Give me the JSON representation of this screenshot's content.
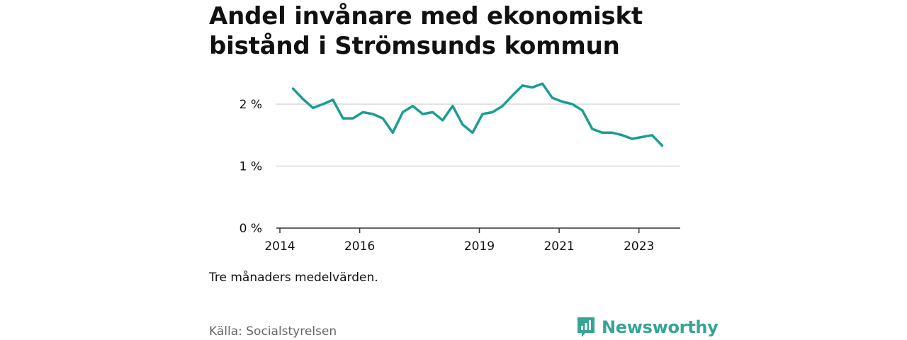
{
  "title": "Andel invånare med ekonomiskt bistånd i Strömsunds kommun",
  "note": "Tre månaders medelvärden.",
  "source": "Källa: Socialstyrelsen",
  "brand": {
    "name": "Newsworthy",
    "color": "#36a595"
  },
  "chart_data": {
    "type": "line",
    "title": "Andel invånare med ekonomiskt bistånd i Strömsunds kommun",
    "xlabel": "",
    "ylabel": "",
    "x_ticks": [
      2014,
      2016,
      2019,
      2021,
      2023
    ],
    "y_ticks": [
      {
        "value": 0,
        "label": "0 %"
      },
      {
        "value": 1,
        "label": "1 %"
      },
      {
        "value": 2,
        "label": "2 %"
      }
    ],
    "xlim": [
      2014,
      2024
    ],
    "ylim": [
      0,
      2.4
    ],
    "grid": true,
    "series": [
      {
        "color": "#1a9e92",
        "x": [
          2014.33,
          2014.58,
          2014.83,
          2015.08,
          2015.33,
          2015.58,
          2015.83,
          2016.08,
          2016.33,
          2016.58,
          2016.83,
          2017.08,
          2017.33,
          2017.58,
          2017.83,
          2018.08,
          2018.33,
          2018.58,
          2018.83,
          2019.08,
          2019.33,
          2019.58,
          2019.83,
          2020.08,
          2020.33,
          2020.58,
          2020.83,
          2021.08,
          2021.33,
          2021.58,
          2021.83,
          2022.08,
          2022.33,
          2022.58,
          2022.83,
          2023.08,
          2023.33,
          2023.58
        ],
        "values": [
          2.25,
          2.08,
          1.94,
          2.0,
          2.07,
          1.77,
          1.77,
          1.87,
          1.84,
          1.77,
          1.54,
          1.87,
          1.97,
          1.84,
          1.87,
          1.74,
          1.97,
          1.67,
          1.54,
          1.84,
          1.87,
          1.97,
          2.14,
          2.3,
          2.27,
          2.33,
          2.1,
          2.04,
          2.0,
          1.9,
          1.6,
          1.54,
          1.54,
          1.5,
          1.44,
          1.47,
          1.5,
          1.33
        ]
      }
    ]
  }
}
